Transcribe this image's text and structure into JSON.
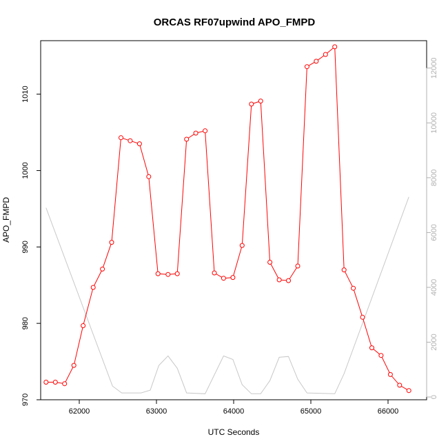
{
  "chart_data": {
    "type": "line",
    "title": "ORCAS RF07upwind APO_FMPD",
    "xlabel": "UTC Seconds",
    "ylabel": "APO_FMPD",
    "xlim": [
      61500,
      66500
    ],
    "ylim": [
      970,
      1017
    ],
    "y2lim": [
      -100,
      13000
    ],
    "x_ticks": [
      62000,
      63000,
      64000,
      65000,
      66000
    ],
    "y_ticks": [
      970,
      980,
      990,
      1000,
      1010
    ],
    "y2_ticks": [
      0,
      2000,
      4000,
      6000,
      8000,
      10000,
      12000
    ],
    "grid": false,
    "series": [
      {
        "axis": "left",
        "color": "#ff0000",
        "style": "line+open-circle",
        "x": [
          61570,
          61690,
          61810,
          61930,
          62050,
          62180,
          62300,
          62420,
          62540,
          62660,
          62780,
          62900,
          63020,
          63150,
          63270,
          63390,
          63510,
          63630,
          63750,
          63870,
          63990,
          64110,
          64230,
          64350,
          64470,
          64590,
          64710,
          64830,
          64950,
          65070,
          65190,
          65310,
          65430,
          65550,
          65670,
          65790,
          65910,
          66030,
          66150,
          66270
        ],
        "y": [
          972.3,
          972.3,
          972.1,
          974.5,
          979.7,
          984.7,
          987.1,
          990.6,
          1004.3,
          1003.9,
          1003.5,
          999.2,
          986.5,
          986.4,
          986.5,
          1004.1,
          1004.9,
          1005.2,
          986.6,
          985.9,
          986.0,
          990.2,
          1008.7,
          1009.1,
          988.0,
          985.7,
          985.6,
          987.5,
          1013.6,
          1014.3,
          1015.2,
          1016.2,
          987.0,
          984.6,
          980.8,
          976.8,
          975.8,
          973.3,
          971.9,
          971.2
        ]
      },
      {
        "axis": "right",
        "color": "#c8c8c8",
        "style": "line",
        "x": [
          61570,
          62430,
          62550,
          62800,
          62920,
          63030,
          63150,
          63270,
          63390,
          63630,
          63870,
          63990,
          64110,
          64230,
          64350,
          64470,
          64590,
          64710,
          64830,
          64950,
          65310,
          65430,
          66270
        ],
        "y": [
          6900,
          400,
          150,
          150,
          250,
          1150,
          1500,
          1050,
          150,
          120,
          1500,
          1370,
          450,
          120,
          120,
          600,
          1450,
          1480,
          650,
          150,
          120,
          850,
          7300
        ]
      }
    ]
  }
}
